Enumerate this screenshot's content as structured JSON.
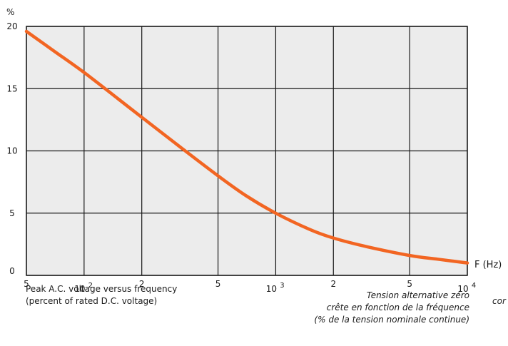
{
  "chart_data": {
    "type": "line",
    "title": "",
    "ylabel": "%",
    "xlabel": "F (Hz)",
    "x_scale": "log",
    "xlim": [
      50,
      10000
    ],
    "ylim": [
      0,
      20
    ],
    "yticks": [
      0,
      5,
      10,
      15,
      20
    ],
    "ytick_labels": [
      "0",
      "5",
      "10",
      "15",
      "20"
    ],
    "xticks": [
      {
        "value": 50,
        "label": "5",
        "exp": ""
      },
      {
        "value": 100,
        "label": "10",
        "exp": "2"
      },
      {
        "value": 200,
        "label": "2",
        "exp": ""
      },
      {
        "value": 500,
        "label": "5",
        "exp": ""
      },
      {
        "value": 1000,
        "label": "10",
        "exp": "3"
      },
      {
        "value": 2000,
        "label": "2",
        "exp": ""
      },
      {
        "value": 5000,
        "label": "5",
        "exp": ""
      },
      {
        "value": 10000,
        "label": "10",
        "exp": "4"
      }
    ],
    "grid": true,
    "colors": {
      "line": "#f26522",
      "plot_bg": "#ececec",
      "grid": "#1a1a1a"
    },
    "series": [
      {
        "x": [
          50,
          70,
          100,
          150,
          200,
          300,
          500,
          700,
          1000,
          1500,
          2000,
          3000,
          5000,
          7000,
          10000
        ],
        "values": [
          19.6,
          18.0,
          16.3,
          14.2,
          12.7,
          10.6,
          8.0,
          6.4,
          5.0,
          3.7,
          3.0,
          2.3,
          1.6,
          1.3,
          1.0
        ]
      }
    ]
  },
  "captions": {
    "english": [
      "Peak A.C. voltage versus frequency",
      "(percent of rated D.C. voltage)"
    ],
    "french": [
      "Tension alternative zéro",
      "crête en fonction de la fréquence",
      "(% de la tension nominale continue)"
    ],
    "cut_off": "cor"
  }
}
